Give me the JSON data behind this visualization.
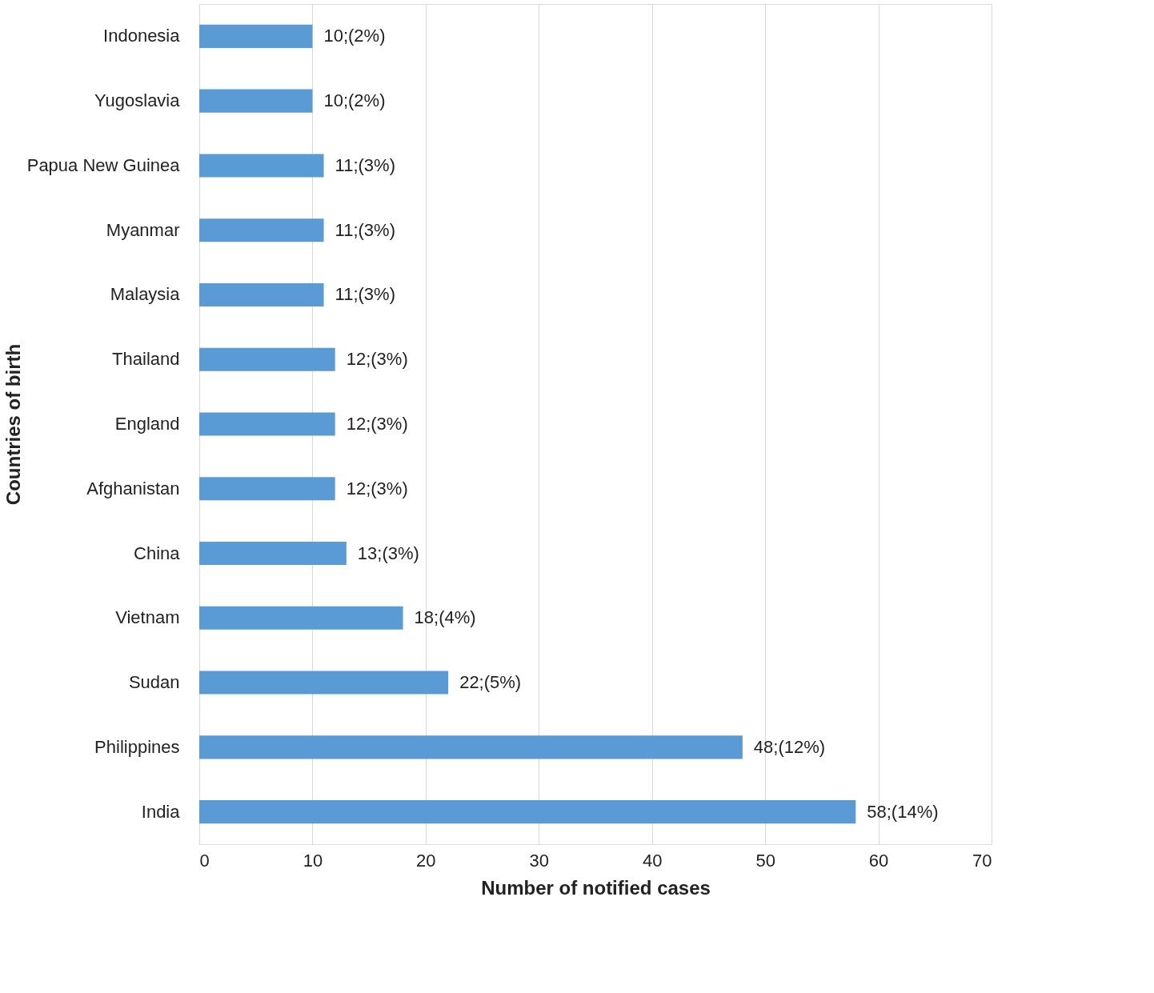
{
  "chart_data": {
    "type": "bar",
    "orientation": "horizontal",
    "xlabel": "Number of notified cases",
    "ylabel": "Countries of birth",
    "categories": [
      "Indonesia",
      "Yugoslavia",
      "Papua New Guinea",
      "Myanmar",
      "Malaysia",
      "Thailand",
      "England",
      "Afghanistan",
      "China",
      "Vietnam",
      "Sudan",
      "Philippines",
      "India"
    ],
    "values": [
      10,
      10,
      11,
      11,
      11,
      12,
      12,
      12,
      13,
      18,
      22,
      48,
      58
    ],
    "value_labels": [
      "10;(2%)",
      "10;(2%)",
      "11;(3%)",
      "11;(3%)",
      "11;(3%)",
      "12;(3%)",
      "12;(3%)",
      "12;(3%)",
      "13;(3%)",
      "18;(4%)",
      "22;(5%)",
      "48;(12%)",
      "58;(14%)"
    ],
    "color": "#5b9bd5",
    "xlim": [
      0,
      70
    ],
    "xticks": [
      0,
      10,
      20,
      30,
      40,
      50,
      60,
      70
    ],
    "grid": "x"
  }
}
